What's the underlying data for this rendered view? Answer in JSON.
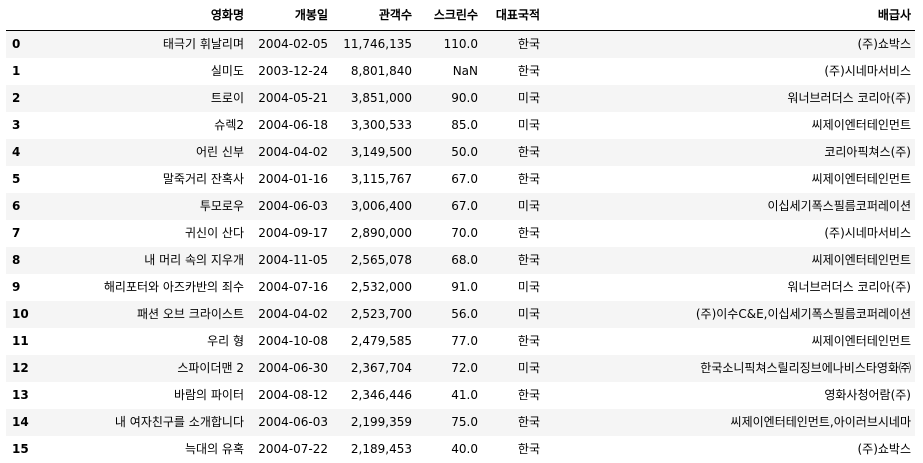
{
  "table": {
    "columns": [
      "영화명",
      "개봉일",
      "관객수",
      "스크린수",
      "대표국적",
      "배급사"
    ],
    "rows": [
      {
        "index": "0",
        "title": "태극기 휘날리며",
        "release": "2004-02-05",
        "audience": "11,746,135",
        "screens": "110.0",
        "country": "한국",
        "distributor": "(주)쇼박스"
      },
      {
        "index": "1",
        "title": "실미도",
        "release": "2003-12-24",
        "audience": "8,801,840",
        "screens": "NaN",
        "country": "한국",
        "distributor": "(주)시네마서비스"
      },
      {
        "index": "2",
        "title": "트로이",
        "release": "2004-05-21",
        "audience": "3,851,000",
        "screens": "90.0",
        "country": "미국",
        "distributor": "워너브러더스 코리아(주)"
      },
      {
        "index": "3",
        "title": "슈렉2",
        "release": "2004-06-18",
        "audience": "3,300,533",
        "screens": "85.0",
        "country": "미국",
        "distributor": "씨제이엔터테인먼트"
      },
      {
        "index": "4",
        "title": "어린 신부",
        "release": "2004-04-02",
        "audience": "3,149,500",
        "screens": "50.0",
        "country": "한국",
        "distributor": "코리아픽쳐스(주)"
      },
      {
        "index": "5",
        "title": "말죽거리 잔혹사",
        "release": "2004-01-16",
        "audience": "3,115,767",
        "screens": "67.0",
        "country": "한국",
        "distributor": "씨제이엔터테인먼트"
      },
      {
        "index": "6",
        "title": "투모로우",
        "release": "2004-06-03",
        "audience": "3,006,400",
        "screens": "67.0",
        "country": "미국",
        "distributor": "이십세기폭스필름코퍼레이션"
      },
      {
        "index": "7",
        "title": "귀신이 산다",
        "release": "2004-09-17",
        "audience": "2,890,000",
        "screens": "70.0",
        "country": "한국",
        "distributor": "(주)시네마서비스"
      },
      {
        "index": "8",
        "title": "내 머리 속의 지우개",
        "release": "2004-11-05",
        "audience": "2,565,078",
        "screens": "68.0",
        "country": "한국",
        "distributor": "씨제이엔터테인먼트"
      },
      {
        "index": "9",
        "title": "해리포터와 아즈카반의 죄수",
        "release": "2004-07-16",
        "audience": "2,532,000",
        "screens": "91.0",
        "country": "미국",
        "distributor": "워너브러더스 코리아(주)"
      },
      {
        "index": "10",
        "title": "패션 오브 크라이스트",
        "release": "2004-04-02",
        "audience": "2,523,700",
        "screens": "56.0",
        "country": "미국",
        "distributor": "(주)이수C&E,이십세기폭스필름코퍼레이션"
      },
      {
        "index": "11",
        "title": "우리 형",
        "release": "2004-10-08",
        "audience": "2,479,585",
        "screens": "77.0",
        "country": "한국",
        "distributor": "씨제이엔터테인먼트"
      },
      {
        "index": "12",
        "title": "스파이더맨 2",
        "release": "2004-06-30",
        "audience": "2,367,704",
        "screens": "72.0",
        "country": "미국",
        "distributor": "한국소니픽쳐스릴리징브에나비스타영화㈜"
      },
      {
        "index": "13",
        "title": "바람의 파이터",
        "release": "2004-08-12",
        "audience": "2,346,446",
        "screens": "41.0",
        "country": "한국",
        "distributor": "영화사청어람(주)"
      },
      {
        "index": "14",
        "title": "내 여자친구를 소개합니다",
        "release": "2004-06-03",
        "audience": "2,199,359",
        "screens": "75.0",
        "country": "한국",
        "distributor": "씨제이엔터테인먼트,아이러브시네마"
      },
      {
        "index": "15",
        "title": "늑대의 유혹",
        "release": "2004-07-22",
        "audience": "2,189,453",
        "screens": "40.0",
        "country": "한국",
        "distributor": "(주)쇼박스"
      }
    ]
  }
}
